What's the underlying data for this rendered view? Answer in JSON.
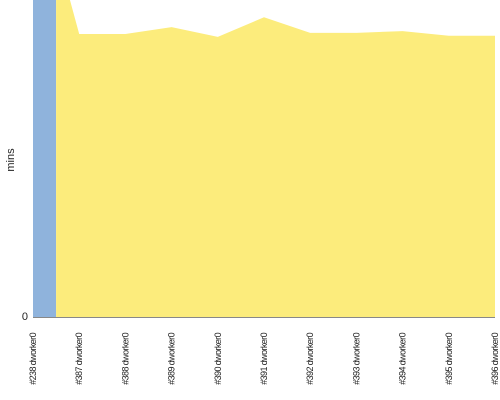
{
  "chart_data": {
    "type": "area",
    "title": "",
    "ylabel": "mins",
    "y_tick_labels": [
      "0"
    ],
    "ylim": [
      0,
      55
    ],
    "categories": [
      "#238 dworker0",
      "#387 dworker0",
      "#388 dworker0",
      "#389 dworker0",
      "#390 dworker0",
      "#391 dworker0",
      "#392 dworker0",
      "#393 dworker0",
      "#394 dworker0",
      "#395 dworker0",
      "#396 dworker0"
    ],
    "series": [
      {
        "color": "#8fb3dc",
        "points": [
          [
            0,
            55
          ],
          [
            0.5,
            55
          ],
          [
            0.5,
            0
          ]
        ]
      },
      {
        "color": "#fcec7c",
        "points": [
          [
            0.5,
            55
          ],
          [
            0.8,
            55
          ],
          [
            1,
            49.1
          ],
          [
            2,
            49.1
          ],
          [
            3,
            50.3
          ],
          [
            4,
            48.6
          ],
          [
            5,
            52.0
          ],
          [
            6,
            49.3
          ],
          [
            7,
            49.3
          ],
          [
            8,
            49.6
          ],
          [
            9,
            48.8
          ],
          [
            10,
            48.8
          ]
        ]
      }
    ]
  }
}
